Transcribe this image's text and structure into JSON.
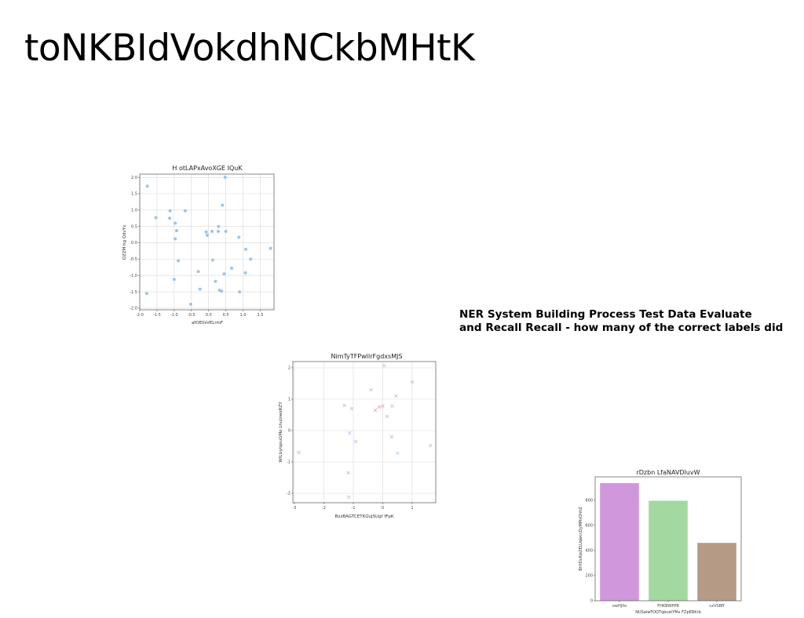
{
  "page": {
    "title": "toNKBIdVokdhNCkbMHtK",
    "text_lines": [
      "NER System Building Process Test Data Evaluate",
      "and Recall Recall - how many of the correct labels did"
    ]
  },
  "chart_data": [
    {
      "type": "scatter",
      "title": "H otLAPxAvoXGE IQuK",
      "xlabel": "afOEIlsVELrmF",
      "ylabel": "QZZM hg QdvYx",
      "xlim": [
        -2.0,
        1.9
      ],
      "ylim": [
        -2.05,
        2.1
      ],
      "xticks": [
        "-2.0",
        "-1.5",
        "-1.0",
        "-0.5",
        "0.0",
        "0.5",
        "1.0",
        "1.5"
      ],
      "yticks": [
        "-2.0",
        "-1.5",
        "-1.0",
        "-0.5",
        "0.0",
        "0.5",
        "1.0",
        "1.5",
        "2.0"
      ],
      "grid": true,
      "marker": "circle",
      "color": "#9ec4e6",
      "points": [
        [
          -1.78,
          1.73
        ],
        [
          -1.8,
          -1.55
        ],
        [
          -1.53,
          0.77
        ],
        [
          -1.12,
          0.98
        ],
        [
          -1.13,
          0.75
        ],
        [
          -0.97,
          0.6
        ],
        [
          -0.93,
          0.37
        ],
        [
          -0.97,
          0.12
        ],
        [
          -1.0,
          -1.12
        ],
        [
          -0.88,
          -0.55
        ],
        [
          -0.68,
          0.98
        ],
        [
          -0.52,
          -1.88
        ],
        [
          -0.3,
          -0.88
        ],
        [
          -0.25,
          -1.42
        ],
        [
          -0.07,
          0.33
        ],
        [
          -0.04,
          0.23
        ],
        [
          0.1,
          0.35
        ],
        [
          0.12,
          -0.53
        ],
        [
          0.2,
          -1.18
        ],
        [
          0.28,
          0.35
        ],
        [
          0.29,
          0.5
        ],
        [
          0.32,
          -1.45
        ],
        [
          0.38,
          -1.48
        ],
        [
          0.4,
          1.15
        ],
        [
          0.45,
          -0.95
        ],
        [
          0.48,
          2.0
        ],
        [
          0.5,
          0.35
        ],
        [
          0.67,
          -0.78
        ],
        [
          0.88,
          0.17
        ],
        [
          0.9,
          -1.5
        ],
        [
          1.07,
          -0.92
        ],
        [
          1.08,
          -0.2
        ],
        [
          1.22,
          -0.5
        ],
        [
          1.8,
          -0.17
        ]
      ]
    },
    {
      "type": "scatter",
      "title": "NimTyTFPwlIrFgdxsMJS",
      "xlabel": "BxzBAGTCETKQuJSUgf fFpK",
      "ylabel": "WlLlzyIqouGMo LhuIzwoRZY",
      "xlim": [
        -3.05,
        1.8
      ],
      "ylim": [
        -2.3,
        2.2
      ],
      "xticks": [
        "-3",
        "-2",
        "-1",
        "0",
        "1"
      ],
      "yticks": [
        "-2",
        "-1",
        "0",
        "1",
        "2"
      ],
      "grid": true,
      "marker": "x",
      "color_blue": "#b8cfe6",
      "color_pink": "#eab0c8",
      "points": [
        [
          -2.85,
          -0.7,
          "blue"
        ],
        [
          -1.3,
          0.8,
          "blue"
        ],
        [
          -1.05,
          0.7,
          "blue"
        ],
        [
          -1.12,
          -0.08,
          "blue"
        ],
        [
          -0.92,
          -0.35,
          "blue"
        ],
        [
          -1.17,
          -1.35,
          "blue"
        ],
        [
          -1.15,
          -2.12,
          "blue"
        ],
        [
          -0.4,
          1.3,
          "blue"
        ],
        [
          0.05,
          2.07,
          "blue"
        ],
        [
          0.15,
          0.45,
          "blue"
        ],
        [
          0.3,
          -0.2,
          "blue"
        ],
        [
          0.32,
          0.78,
          "blue"
        ],
        [
          0.45,
          1.1,
          "blue"
        ],
        [
          0.5,
          -0.72,
          "blue"
        ],
        [
          1.0,
          1.55,
          "blue"
        ],
        [
          1.62,
          -0.48,
          "blue"
        ],
        [
          -0.25,
          0.65,
          "pink"
        ],
        [
          -0.12,
          0.75,
          "pink"
        ],
        [
          0.0,
          0.78,
          "pink"
        ]
      ]
    },
    {
      "type": "bar",
      "title": "rDzbn LfaNAVDluvW",
      "xlabel": "NUSalwFOQTqbcetYMx FZpERKrb",
      "ylabel": "BhYDvKwZELUqwccDyMMxQhhZ",
      "categories": [
        "owHJIlo",
        "FHKBWPPB",
        "cxVSBff"
      ],
      "values": [
        935,
        795,
        460
      ],
      "colors": [
        "#d197dc",
        "#a3d8a0",
        "#b59a85"
      ],
      "ylim": [
        0,
        985
      ],
      "yticks": [
        0,
        200,
        400,
        600,
        800
      ],
      "grid": false
    }
  ]
}
